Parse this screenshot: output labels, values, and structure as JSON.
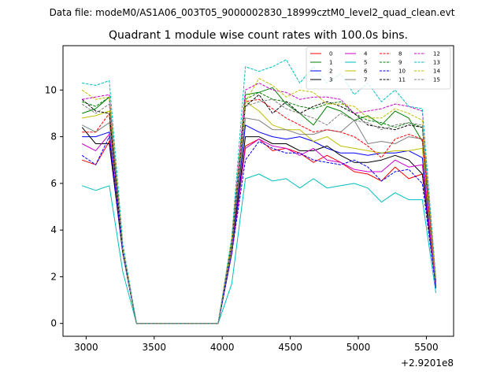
{
  "supertitle": "Data file: modeM0/AS1A06_003T05_9000002830_18999cztM0_level2_quad_clean.evt",
  "chart_data": {
    "type": "line",
    "title": "Quadrant 1 module wise count rates with 100.0s bins.",
    "xlabel": "",
    "ylabel": "",
    "x_offset_label": "+2.9201e8",
    "xlim": [
      2830,
      5700
    ],
    "ylim": [
      -0.55,
      11.9
    ],
    "xticks": [
      3000,
      3500,
      4000,
      4500,
      5000,
      5500
    ],
    "yticks": [
      0,
      2,
      4,
      6,
      8,
      10
    ],
    "x": [
      2970,
      3070,
      3170,
      3270,
      3370,
      3470,
      3570,
      3670,
      3770,
      3870,
      3970,
      4070,
      4170,
      4270,
      4370,
      4470,
      4570,
      4670,
      4770,
      4870,
      4970,
      5070,
      5170,
      5270,
      5370,
      5470,
      5570
    ],
    "series": [
      {
        "name": "0",
        "color": "#ff0000",
        "dash": "solid",
        "values": [
          7.0,
          6.8,
          7.8,
          3.0,
          0,
          0,
          0,
          0,
          0,
          0,
          0,
          3.0,
          7.6,
          7.9,
          7.4,
          7.5,
          7.3,
          6.9,
          7.2,
          6.9,
          6.5,
          6.4,
          6.1,
          6.7,
          6.2,
          6.4,
          1.6
        ]
      },
      {
        "name": "1",
        "color": "#008000",
        "dash": "solid",
        "values": [
          9.0,
          9.2,
          9.7,
          3.0,
          0,
          0,
          0,
          0,
          0,
          0,
          0,
          3.5,
          9.8,
          9.9,
          10.1,
          9.4,
          9.0,
          8.5,
          9.3,
          9.1,
          8.7,
          8.9,
          8.5,
          9.1,
          8.8,
          7.8,
          1.7
        ]
      },
      {
        "name": "2",
        "color": "#0000ff",
        "dash": "solid",
        "values": [
          8.0,
          8.0,
          8.2,
          3.0,
          0,
          0,
          0,
          0,
          0,
          0,
          0,
          3.2,
          8.5,
          8.2,
          8.0,
          7.9,
          8.0,
          7.8,
          7.5,
          7.3,
          7.3,
          7.2,
          7.3,
          7.3,
          7.4,
          7.1,
          1.7
        ]
      },
      {
        "name": "3",
        "color": "#000000",
        "dash": "solid",
        "values": [
          8.4,
          7.7,
          7.7,
          3.0,
          0,
          0,
          0,
          0,
          0,
          0,
          0,
          3.0,
          8.0,
          8.0,
          7.7,
          7.7,
          7.4,
          7.4,
          7.6,
          7.2,
          6.9,
          6.9,
          7.0,
          7.2,
          7.0,
          6.4,
          1.6
        ]
      },
      {
        "name": "4",
        "color": "#cc00cc",
        "dash": "solid",
        "values": [
          7.7,
          7.4,
          8.1,
          3.0,
          0,
          0,
          0,
          0,
          0,
          0,
          0,
          3.0,
          7.5,
          7.9,
          7.6,
          7.5,
          7.2,
          7.5,
          7.0,
          6.9,
          6.6,
          6.5,
          6.5,
          7.0,
          6.7,
          6.8,
          1.6
        ]
      },
      {
        "name": "5",
        "color": "#00bfbf",
        "dash": "solid",
        "values": [
          5.9,
          5.7,
          5.9,
          2.2,
          0,
          0,
          0,
          0,
          0,
          0,
          0,
          1.7,
          6.2,
          6.4,
          6.1,
          6.2,
          5.8,
          6.2,
          5.8,
          5.9,
          6.0,
          5.8,
          5.2,
          5.6,
          5.3,
          5.3,
          1.3
        ]
      },
      {
        "name": "6",
        "color": "#bfbf00",
        "dash": "solid",
        "values": [
          8.8,
          8.9,
          9.1,
          3.0,
          0,
          0,
          0,
          0,
          0,
          0,
          0,
          3.2,
          9.5,
          9.1,
          8.5,
          8.3,
          8.3,
          7.8,
          8.0,
          7.6,
          7.5,
          7.4,
          7.3,
          7.4,
          7.4,
          7.5,
          1.7
        ]
      },
      {
        "name": "7",
        "color": "#808080",
        "dash": "solid",
        "values": [
          8.5,
          8.2,
          8.6,
          3.1,
          0,
          0,
          0,
          0,
          0,
          0,
          0,
          3.3,
          8.8,
          8.7,
          8.3,
          8.3,
          8.1,
          8.1,
          8.3,
          8.2,
          8.7,
          7.7,
          7.8,
          7.7,
          8.0,
          7.9,
          1.8
        ]
      },
      {
        "name": "8",
        "color": "#ff0000",
        "dash": "dashed",
        "values": [
          8.2,
          8.2,
          9.0,
          3.1,
          0,
          0,
          0,
          0,
          0,
          0,
          0,
          3.4,
          9.5,
          9.6,
          9.2,
          8.8,
          8.5,
          8.2,
          8.3,
          8.2,
          8.0,
          7.6,
          7.1,
          7.9,
          8.1,
          7.9,
          1.7
        ]
      },
      {
        "name": "9",
        "color": "#008000",
        "dash": "dashed",
        "values": [
          9.5,
          9.3,
          9.7,
          3.2,
          0,
          0,
          0,
          0,
          0,
          0,
          0,
          3.4,
          9.6,
          9.9,
          9.6,
          9.5,
          9.3,
          9.2,
          9.4,
          9.5,
          9.0,
          8.7,
          8.6,
          8.4,
          8.6,
          8.4,
          1.8
        ]
      },
      {
        "name": "10",
        "color": "#0000ff",
        "dash": "dashed",
        "values": [
          7.2,
          6.8,
          8.0,
          3.0,
          0,
          0,
          0,
          0,
          0,
          0,
          0,
          3.0,
          7.0,
          7.8,
          7.5,
          7.3,
          7.3,
          7.0,
          6.9,
          6.8,
          7.0,
          6.7,
          6.1,
          6.5,
          6.6,
          6.0,
          1.5
        ]
      },
      {
        "name": "11",
        "color": "#000000",
        "dash": "dashed",
        "values": [
          9.6,
          9.1,
          9.0,
          3.1,
          0,
          0,
          0,
          0,
          0,
          0,
          0,
          3.4,
          9.3,
          9.8,
          9.0,
          9.5,
          9.0,
          9.3,
          9.5,
          9.3,
          9.0,
          8.5,
          8.4,
          8.3,
          8.5,
          8.4,
          1.8
        ]
      },
      {
        "name": "12",
        "color": "#cc00cc",
        "dash": "dashed",
        "values": [
          9.6,
          9.7,
          9.8,
          3.2,
          0,
          0,
          0,
          0,
          0,
          0,
          0,
          3.6,
          10.0,
          10.3,
          10.0,
          9.9,
          9.6,
          9.7,
          9.7,
          9.6,
          9.0,
          9.1,
          9.2,
          9.4,
          9.3,
          9.1,
          1.9
        ]
      },
      {
        "name": "13",
        "color": "#00bfbf",
        "dash": "dashed",
        "values": [
          10.3,
          10.2,
          10.4,
          3.4,
          0,
          0,
          0,
          0,
          0,
          0,
          0,
          3.7,
          11.0,
          10.8,
          11.0,
          11.3,
          10.3,
          11.0,
          10.3,
          10.7,
          9.8,
          10.3,
          9.5,
          10.0,
          9.3,
          9.2,
          1.9
        ]
      },
      {
        "name": "14",
        "color": "#bfbf00",
        "dash": "dashed",
        "values": [
          10.0,
          9.6,
          9.7,
          3.2,
          0,
          0,
          0,
          0,
          0,
          0,
          0,
          3.6,
          9.5,
          10.5,
          10.2,
          9.7,
          10.0,
          9.9,
          9.4,
          9.4,
          9.3,
          8.8,
          8.8,
          9.2,
          9.0,
          8.7,
          1.8
        ]
      },
      {
        "name": "15",
        "color": "#808080",
        "dash": "dashed",
        "values": [
          9.4,
          9.0,
          9.4,
          3.1,
          0,
          0,
          0,
          0,
          0,
          0,
          0,
          3.4,
          9.3,
          9.5,
          9.6,
          9.2,
          9.0,
          8.8,
          8.5,
          9.0,
          8.7,
          8.6,
          8.3,
          8.5,
          8.6,
          8.5,
          1.7
        ]
      }
    ]
  }
}
